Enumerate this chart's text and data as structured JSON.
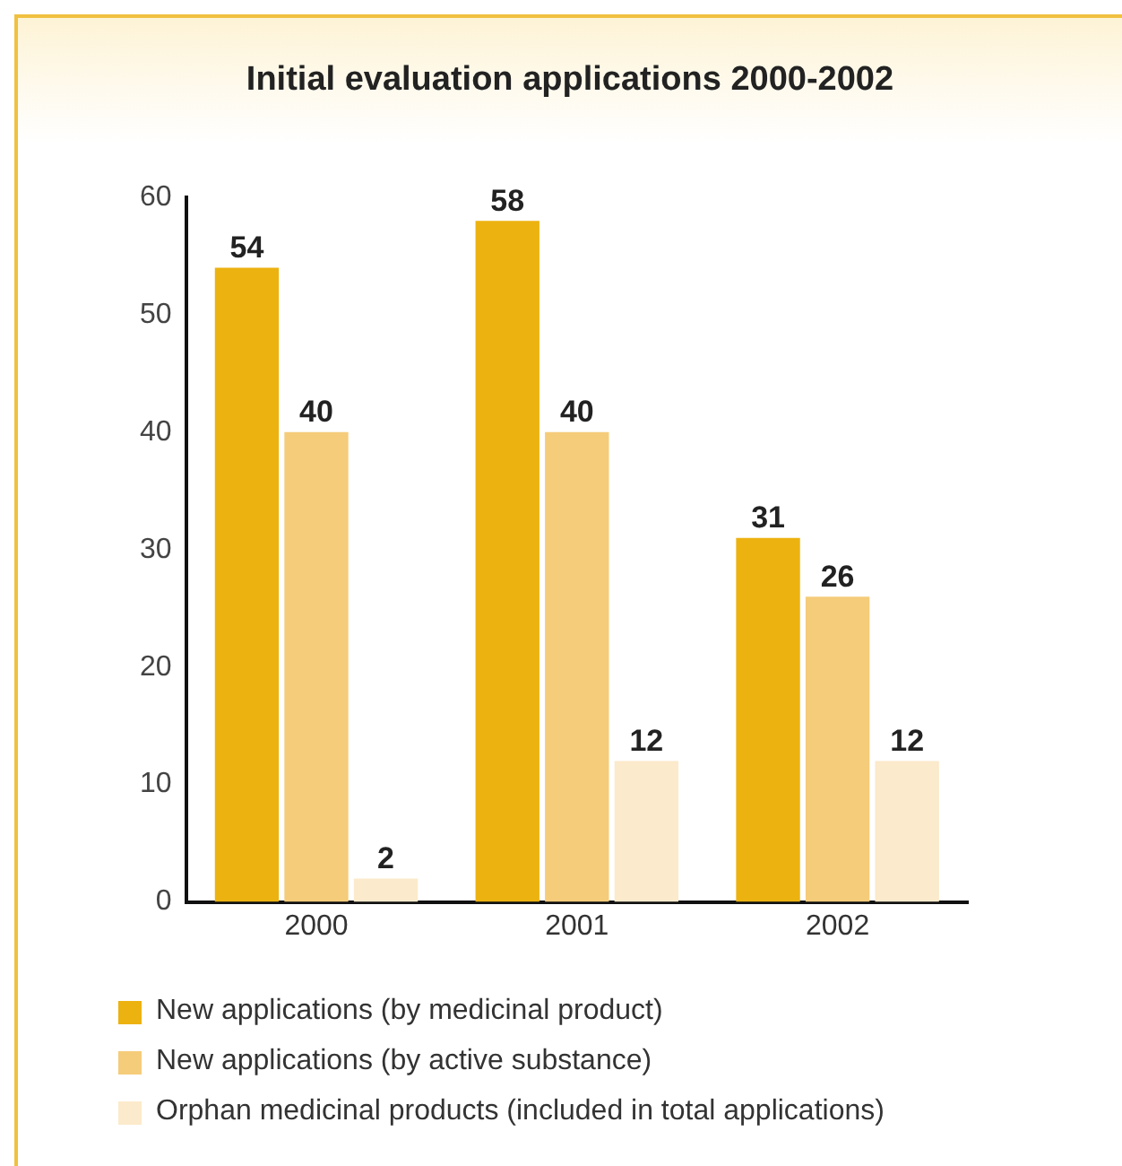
{
  "chart_data": {
    "type": "bar",
    "title": "Initial evaluation applications 2000-2002",
    "categories": [
      "2000",
      "2001",
      "2002"
    ],
    "series": [
      {
        "name": "New applications (by medicinal product)",
        "color": "#ecb210",
        "values": [
          54,
          58,
          31
        ]
      },
      {
        "name": "New applications (by active substance)",
        "color": "#f5cc7a",
        "values": [
          40,
          40,
          26
        ]
      },
      {
        "name": "Orphan medicinal products (included in total applications)",
        "color": "#fbeacb",
        "values": [
          2,
          12,
          12
        ]
      }
    ],
    "ylim": [
      0,
      60
    ],
    "yticks": [
      0,
      10,
      20,
      30,
      40,
      50,
      60
    ],
    "grid": false,
    "legend": "bottom",
    "data_labels": true
  }
}
